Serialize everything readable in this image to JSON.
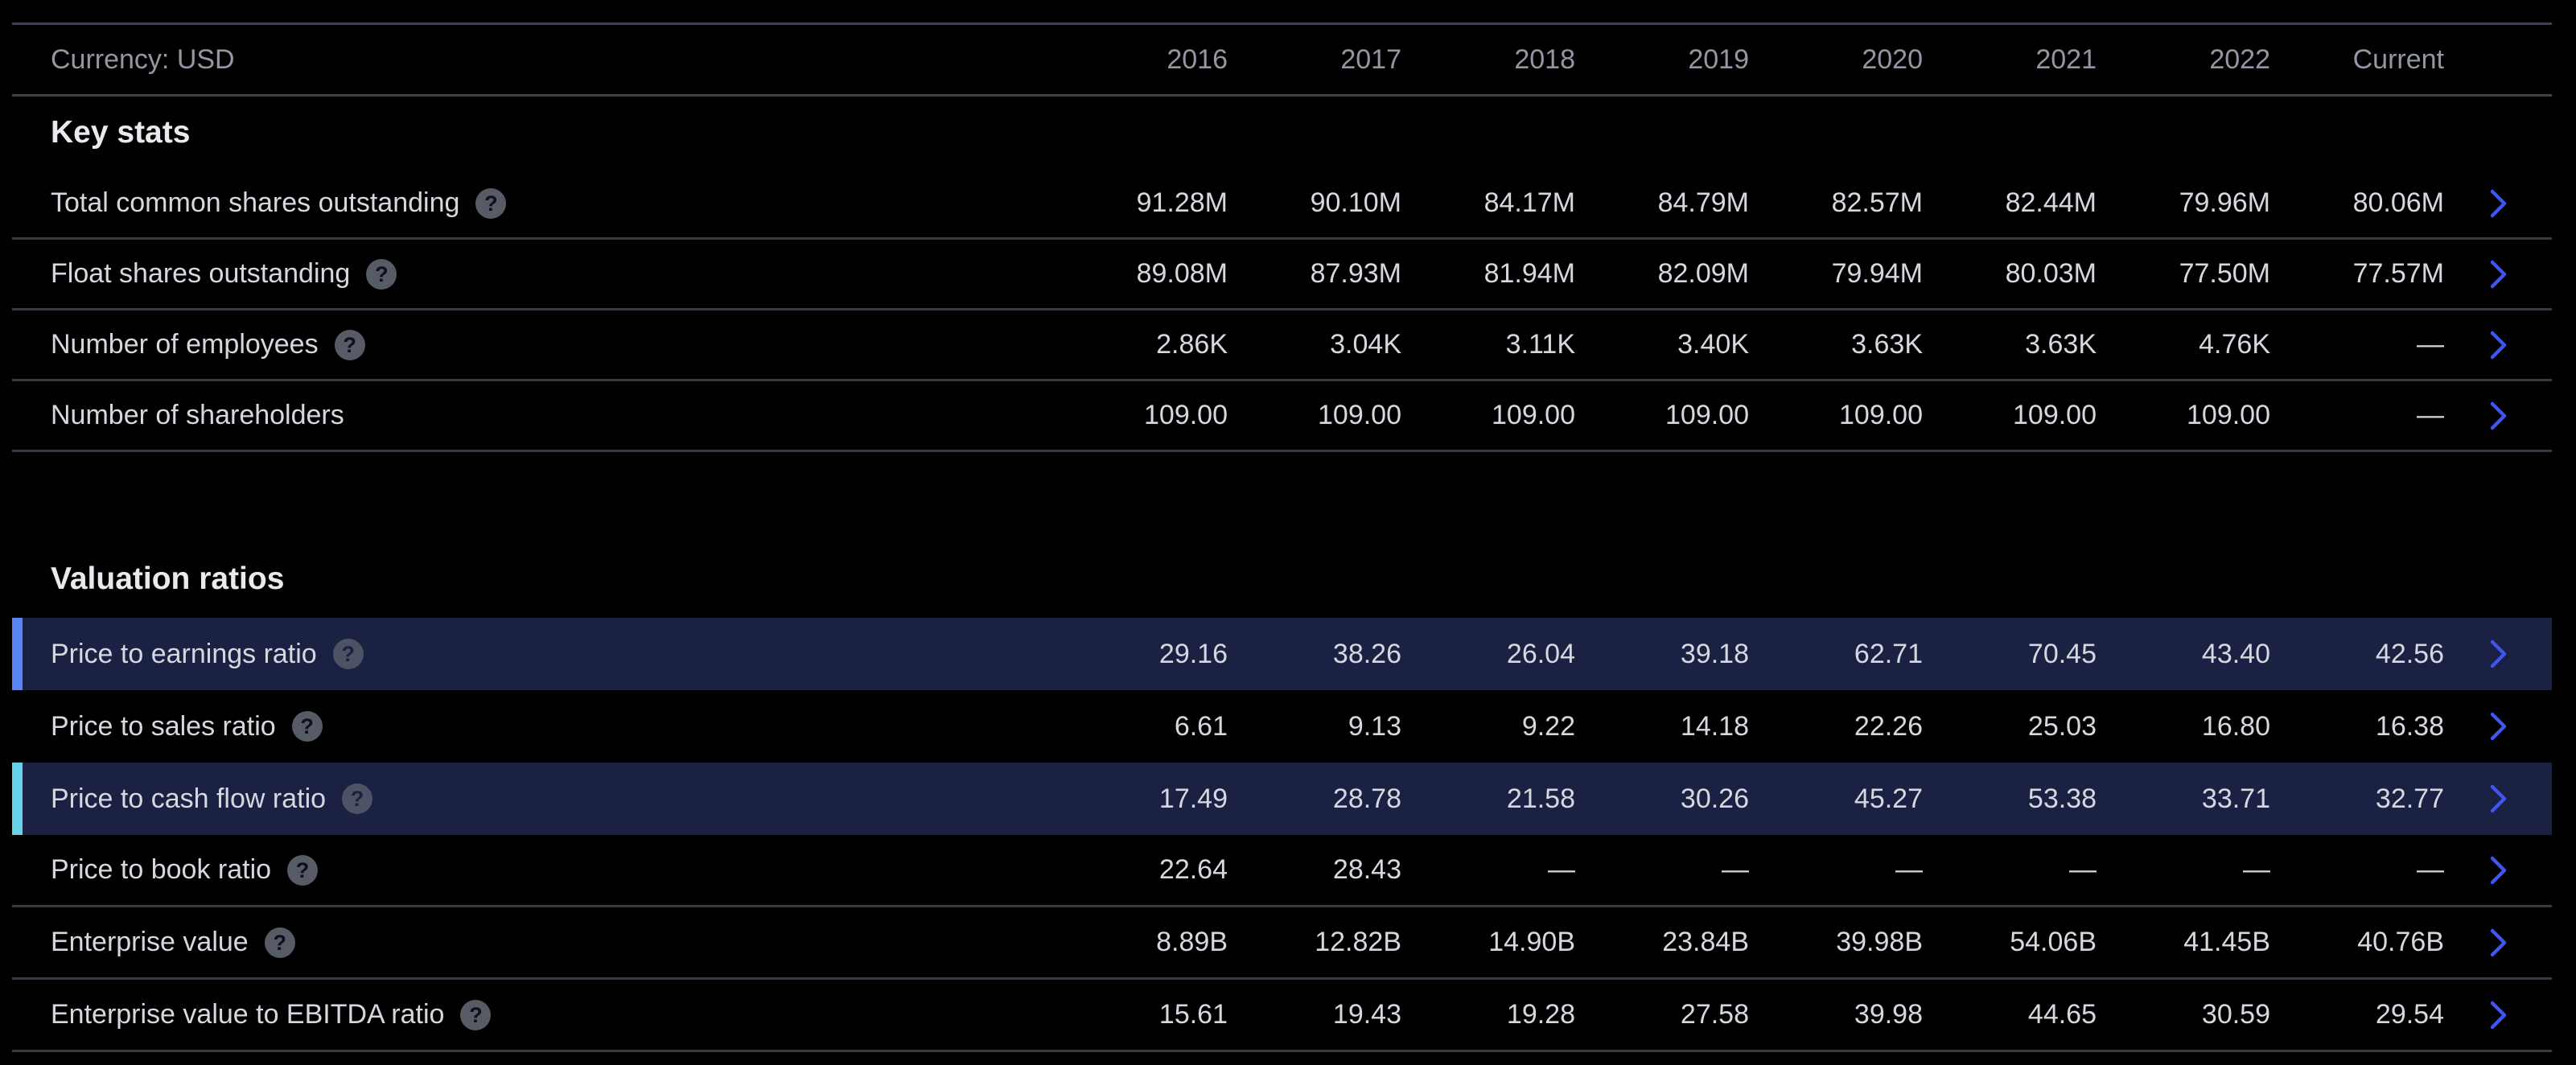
{
  "header": {
    "currency_label": "Currency: USD",
    "columns": [
      "2016",
      "2017",
      "2018",
      "2019",
      "2020",
      "2021",
      "2022",
      "Current"
    ]
  },
  "icons": {
    "help_glyph": "?",
    "row_chevron": "chevron-right"
  },
  "colors": {
    "page_bg": "#000000",
    "row_highlight_bg": "#1a2142",
    "highlight_blue": "#5b85f6",
    "highlight_cyan": "#66d3e8",
    "chevron_blue": "#3d57f0",
    "divider": "#3e4250",
    "text_primary": "#d5d8de",
    "text_secondary": "#9297a2"
  },
  "sections": [
    {
      "title": "Key stats",
      "rows": [
        {
          "label": "Total common shares outstanding",
          "help": true,
          "highlight": "none",
          "divider": true,
          "values": [
            "91.28M",
            "90.10M",
            "84.17M",
            "84.79M",
            "82.57M",
            "82.44M",
            "79.96M",
            "80.06M"
          ]
        },
        {
          "label": "Float shares outstanding",
          "help": true,
          "highlight": "none",
          "divider": true,
          "values": [
            "89.08M",
            "87.93M",
            "81.94M",
            "82.09M",
            "79.94M",
            "80.03M",
            "77.50M",
            "77.57M"
          ]
        },
        {
          "label": "Number of employees",
          "help": true,
          "highlight": "none",
          "divider": true,
          "values": [
            "2.86K",
            "3.04K",
            "3.11K",
            "3.40K",
            "3.63K",
            "3.63K",
            "4.76K",
            "—"
          ]
        },
        {
          "label": "Number of shareholders",
          "help": false,
          "highlight": "none",
          "divider": true,
          "values": [
            "109.00",
            "109.00",
            "109.00",
            "109.00",
            "109.00",
            "109.00",
            "109.00",
            "—"
          ]
        }
      ]
    },
    {
      "title": "Valuation ratios",
      "rows": [
        {
          "label": "Price to earnings ratio",
          "help": true,
          "highlight": "blue",
          "divider": false,
          "values": [
            "29.16",
            "38.26",
            "26.04",
            "39.18",
            "62.71",
            "70.45",
            "43.40",
            "42.56"
          ]
        },
        {
          "label": "Price to sales ratio",
          "help": true,
          "highlight": "none",
          "divider": false,
          "values": [
            "6.61",
            "9.13",
            "9.22",
            "14.18",
            "22.26",
            "25.03",
            "16.80",
            "16.38"
          ]
        },
        {
          "label": "Price to cash flow ratio",
          "help": true,
          "highlight": "cyan",
          "divider": false,
          "values": [
            "17.49",
            "28.78",
            "21.58",
            "30.26",
            "45.27",
            "53.38",
            "33.71",
            "32.77"
          ]
        },
        {
          "label": "Price to book ratio",
          "help": true,
          "highlight": "none",
          "divider": true,
          "values": [
            "22.64",
            "28.43",
            "—",
            "—",
            "—",
            "—",
            "—",
            "—"
          ]
        },
        {
          "label": "Enterprise value",
          "help": true,
          "highlight": "none",
          "divider": true,
          "values": [
            "8.89B",
            "12.82B",
            "14.90B",
            "23.84B",
            "39.98B",
            "54.06B",
            "41.45B",
            "40.76B"
          ]
        },
        {
          "label": "Enterprise value to EBITDA ratio",
          "help": true,
          "highlight": "none",
          "divider": true,
          "values": [
            "15.61",
            "19.43",
            "19.28",
            "27.58",
            "39.98",
            "44.65",
            "30.59",
            "29.54"
          ]
        }
      ]
    }
  ]
}
